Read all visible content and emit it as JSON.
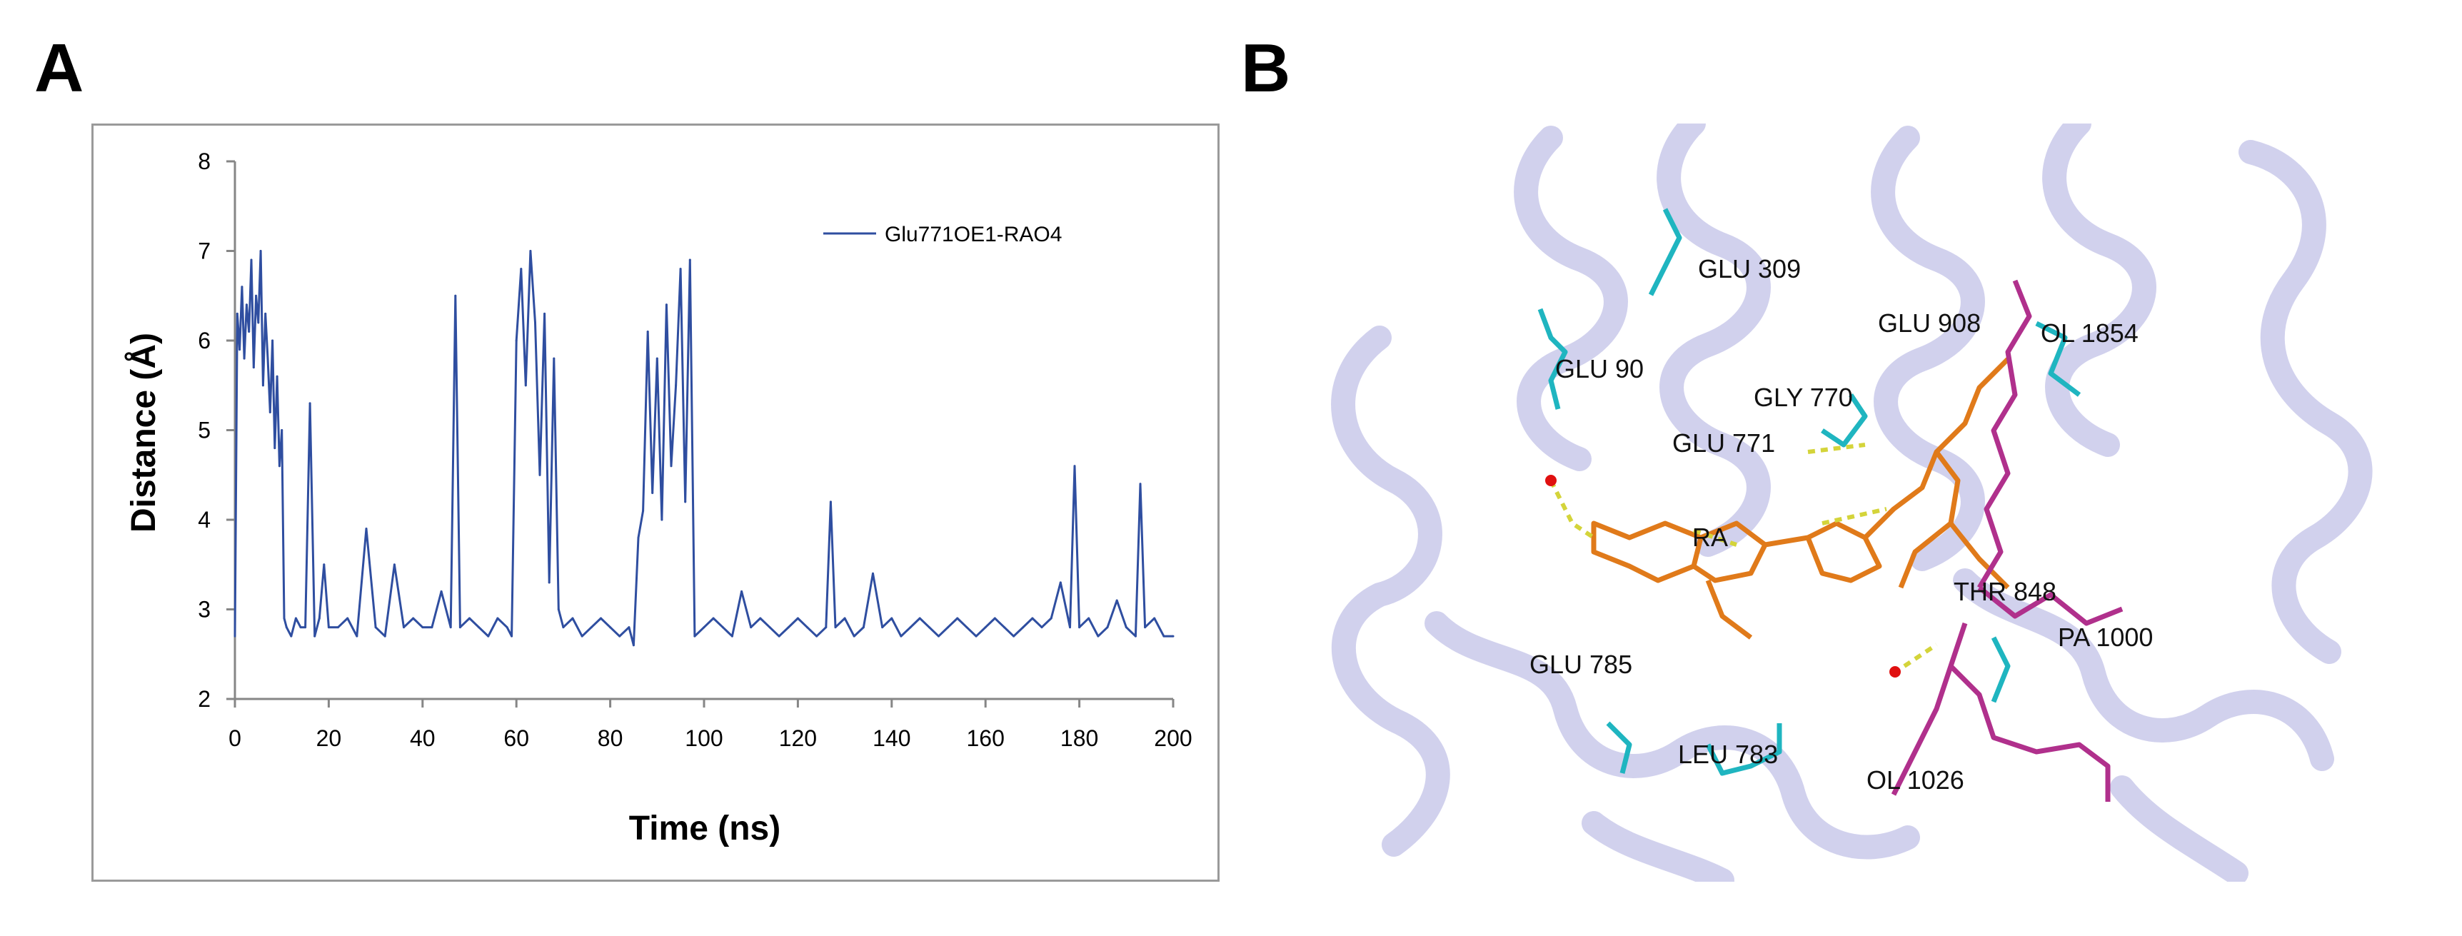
{
  "panels": {
    "a_label": "A",
    "b_label": "B"
  },
  "chart_data": {
    "type": "line",
    "title": "",
    "xlabel": "Time (ns)",
    "ylabel": "Distance (Å)",
    "xlim": [
      0,
      200
    ],
    "ylim": [
      2,
      8
    ],
    "xticks": [
      0,
      20,
      40,
      60,
      80,
      100,
      120,
      140,
      160,
      180,
      200
    ],
    "yticks": [
      2,
      3,
      4,
      5,
      6,
      7,
      8
    ],
    "grid": false,
    "legend_position": "top-right",
    "series": [
      {
        "name": "Glu771OE1-RAO4",
        "color": "#2f4ea0",
        "x": [
          0,
          0.5,
          1,
          1.5,
          2,
          2.5,
          3,
          3.5,
          4,
          4.5,
          5,
          5.5,
          6,
          6.5,
          7,
          7.5,
          8,
          8.5,
          9,
          9.5,
          10,
          10.5,
          11,
          12,
          13,
          14,
          15,
          16,
          17,
          18,
          19,
          20,
          22,
          24,
          26,
          28,
          30,
          32,
          34,
          36,
          38,
          40,
          42,
          44,
          46,
          47,
          48,
          50,
          52,
          54,
          56,
          58,
          59,
          60,
          61,
          62,
          63,
          64,
          65,
          66,
          67,
          68,
          69,
          70,
          72,
          74,
          76,
          78,
          80,
          82,
          84,
          85,
          86,
          87,
          88,
          89,
          90,
          91,
          92,
          93,
          94,
          95,
          96,
          97,
          98,
          100,
          102,
          104,
          106,
          108,
          110,
          112,
          114,
          116,
          118,
          120,
          122,
          124,
          126,
          127,
          128,
          130,
          132,
          134,
          136,
          138,
          140,
          142,
          144,
          146,
          148,
          150,
          152,
          154,
          156,
          158,
          160,
          162,
          164,
          166,
          168,
          170,
          172,
          174,
          176,
          178,
          179,
          180,
          182,
          184,
          186,
          188,
          190,
          192,
          193,
          194,
          196,
          198,
          200
        ],
        "values": [
          2.7,
          6.3,
          5.9,
          6.6,
          5.8,
          6.4,
          6.1,
          6.9,
          5.7,
          6.5,
          6.2,
          7.0,
          5.5,
          6.3,
          5.8,
          5.2,
          6.0,
          4.8,
          5.6,
          4.6,
          5.0,
          2.9,
          2.8,
          2.7,
          2.9,
          2.8,
          2.8,
          5.3,
          2.7,
          2.9,
          3.5,
          2.8,
          2.8,
          2.9,
          2.7,
          3.9,
          2.8,
          2.7,
          3.5,
          2.8,
          2.9,
          2.8,
          2.8,
          3.2,
          2.8,
          6.5,
          2.8,
          2.9,
          2.8,
          2.7,
          2.9,
          2.8,
          2.7,
          6.0,
          6.8,
          5.5,
          7.0,
          6.2,
          4.5,
          6.3,
          3.3,
          5.8,
          3.0,
          2.8,
          2.9,
          2.7,
          2.8,
          2.9,
          2.8,
          2.7,
          2.8,
          2.6,
          3.8,
          4.1,
          6.1,
          4.3,
          5.8,
          4.0,
          6.4,
          4.6,
          5.5,
          6.8,
          4.2,
          6.9,
          2.7,
          2.8,
          2.9,
          2.8,
          2.7,
          3.2,
          2.8,
          2.9,
          2.8,
          2.7,
          2.8,
          2.9,
          2.8,
          2.7,
          2.8,
          4.2,
          2.8,
          2.9,
          2.7,
          2.8,
          3.4,
          2.8,
          2.9,
          2.7,
          2.8,
          2.9,
          2.8,
          2.7,
          2.8,
          2.9,
          2.8,
          2.7,
          2.8,
          2.9,
          2.8,
          2.7,
          2.8,
          2.9,
          2.8,
          2.9,
          3.3,
          2.8,
          4.6,
          2.8,
          2.9,
          2.7,
          2.8,
          3.1,
          2.8,
          2.7,
          4.4,
          2.8,
          2.9,
          2.7,
          2.7
        ]
      }
    ]
  },
  "structure": {
    "residues": [
      {
        "id": "glu309",
        "label": "GLU 309"
      },
      {
        "id": "glu908",
        "label": "GLU 908"
      },
      {
        "id": "ol1854",
        "label": "OL 1854"
      },
      {
        "id": "glu90",
        "label": "GLU 90"
      },
      {
        "id": "gly770",
        "label": "GLY 770"
      },
      {
        "id": "glu771",
        "label": "GLU 771"
      },
      {
        "id": "ra",
        "label": "RA"
      },
      {
        "id": "thr848",
        "label": "THR 848"
      },
      {
        "id": "pa1000",
        "label": "PA 1000"
      },
      {
        "id": "glu785",
        "label": "GLU 785"
      },
      {
        "id": "leu783",
        "label": "LEU 783"
      },
      {
        "id": "ol1026",
        "label": "OL 1026"
      }
    ],
    "colors": {
      "ribbon": "#9a9ad8",
      "ligand": "#e07a1a",
      "residue_cyan": "#1fb5c0",
      "lipid_magenta": "#b0308c",
      "hbond": "#d4d43a",
      "water": "#e01010"
    }
  }
}
